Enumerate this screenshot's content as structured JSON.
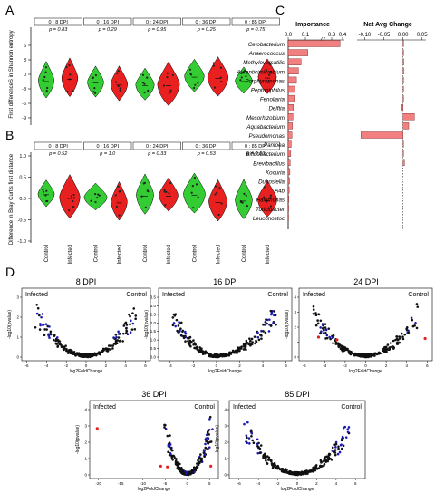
{
  "figure": {
    "panel_letters": [
      "A",
      "B",
      "C",
      "D"
    ]
  },
  "colors": {
    "green": "#33cc33",
    "red": "#e82020",
    "pink": "#f28080",
    "blue": "#1a1ab0",
    "black": "#111111"
  },
  "panelA": {
    "ylabel": "First differenceS in Shannon entropy",
    "yticks": [
      "6",
      "3",
      "0",
      "-3",
      "-6",
      "-9"
    ],
    "groups": [
      {
        "dpi": "0 : 8 DPI",
        "p": "p = 0.83"
      },
      {
        "dpi": "0 : 16 DPI",
        "p": "p = 0.29"
      },
      {
        "dpi": "0 : 24 DPI",
        "p": "p = 0.95"
      },
      {
        "dpi": "0 : 36 DPI",
        "p": "p = 0.25"
      },
      {
        "dpi": "0 : 85 DPI",
        "p": "p = 0.75"
      }
    ]
  },
  "panelB": {
    "ylabel": "Difference in Bray Curtis first distance",
    "yticks": [
      "1.0",
      "0.5",
      "0.0",
      "-0.5",
      "-1.0"
    ],
    "groups": [
      {
        "dpi": "0 : 8 DPI",
        "p": "p = 0.52"
      },
      {
        "dpi": "0 : 16 DPI",
        "p": "p = 1.0"
      },
      {
        "dpi": "0 : 24 DPI",
        "p": "p = 0.33"
      },
      {
        "dpi": "0 : 36 DPI",
        "p": "p = 0.53"
      },
      {
        "dpi": "0 : 85 DPI",
        "p": "p = 0.53"
      }
    ],
    "xlabels": [
      "Control",
      "Infected",
      "Control",
      "Infected",
      "Control",
      "Infected",
      "Control",
      "Infected",
      "Control",
      "Infected"
    ]
  },
  "panelC": {
    "importance_title": "Importance",
    "net_title": "Net Avg Change",
    "importance_ticks": [
      "0.0",
      "0.1",
      "0.3",
      "0.4"
    ],
    "net_ticks": [
      "-0.10",
      "-0.05",
      "0.00",
      "0.05"
    ]
  },
  "panelD": {
    "xlabel": "log2FoldChange",
    "ylabel": "-log10(pvalue)",
    "infected_label": "Infected",
    "control_label": "Control",
    "plots": [
      {
        "title": "8 DPI",
        "xticks": [
          "-6",
          "-4",
          "-2",
          "0",
          "2",
          "4",
          "6"
        ],
        "yticks": [
          "0",
          "1",
          "2",
          "3"
        ]
      },
      {
        "title": "16 DPI",
        "xticks": [
          "-4",
          "-2",
          "0",
          "2",
          "4",
          "6"
        ],
        "yticks": [
          "0.0",
          "0.5",
          "1.0",
          "1.5",
          "2.0",
          "2.5",
          "3.0",
          "3.5"
        ]
      },
      {
        "title": "24 DPI",
        "xticks": [
          "-6",
          "-4",
          "-2",
          "0",
          "2",
          "4",
          "6"
        ],
        "yticks": [
          "0",
          "1",
          "2",
          "3",
          "4"
        ]
      },
      {
        "title": "36 DPI",
        "xticks": [
          "-20",
          "-15",
          "-10",
          "-5",
          "0",
          "5"
        ],
        "yticks": [
          "0",
          "1",
          "2",
          "3",
          "4"
        ]
      },
      {
        "title": "85 DPI",
        "xticks": [
          "-6",
          "-4",
          "-2",
          "0",
          "2",
          "4",
          "6"
        ],
        "yticks": [
          "0",
          "1",
          "2",
          "3",
          "4"
        ]
      }
    ]
  },
  "chart_data": [
    {
      "type": "bar",
      "title": "Importance",
      "categories": [
        "Cetobacterium",
        "Anaerococcus",
        "Methyloversatilis",
        "Auranticimicrobium",
        "Porphyromonas",
        "Peptoniphilus",
        "Fenollaria",
        "Delftia",
        "Mesorhizobium",
        "Aquabacterium",
        "Pseudomonas",
        "Pantoea",
        "Bifidobacterium",
        "Brevibacillus",
        "Kocuria",
        "Dubosiella",
        "A4b",
        "Halomonas",
        "Turicibacter",
        "Leuconostoc"
      ],
      "values": [
        0.38,
        0.12,
        0.075,
        0.06,
        0.048,
        0.04,
        0.035,
        0.03,
        0.028,
        0.025,
        0.022,
        0.018,
        0.015,
        0.012,
        0.01,
        0.008,
        0.006,
        0.004,
        0.003,
        0.002
      ],
      "xlim": [
        0,
        0.4
      ]
    },
    {
      "type": "bar",
      "title": "Net Avg Change",
      "categories": [
        "Cetobacterium",
        "Anaerococcus",
        "Methyloversatilis",
        "Auranticimicrobium",
        "Porphyromonas",
        "Peptoniphilus",
        "Fenollaria",
        "Delftia",
        "Mesorhizobium",
        "Aquabacterium",
        "Pseudomonas",
        "Pantoea",
        "Bifidobacterium",
        "Brevibacillus",
        "Kocuria",
        "Dubosiella",
        "A4b",
        "Halomonas",
        "Turicibacter",
        "Leuconostoc"
      ],
      "values": [
        0.001,
        0.001,
        0.002,
        0.002,
        0.001,
        0.001,
        0.001,
        -0.003,
        0.03,
        0.015,
        -0.11,
        0.001,
        0.001,
        0.004,
        0.0,
        0.0,
        0.0,
        0.0,
        0.0,
        0.0
      ],
      "xlim": [
        -0.12,
        0.06
      ]
    }
  ]
}
